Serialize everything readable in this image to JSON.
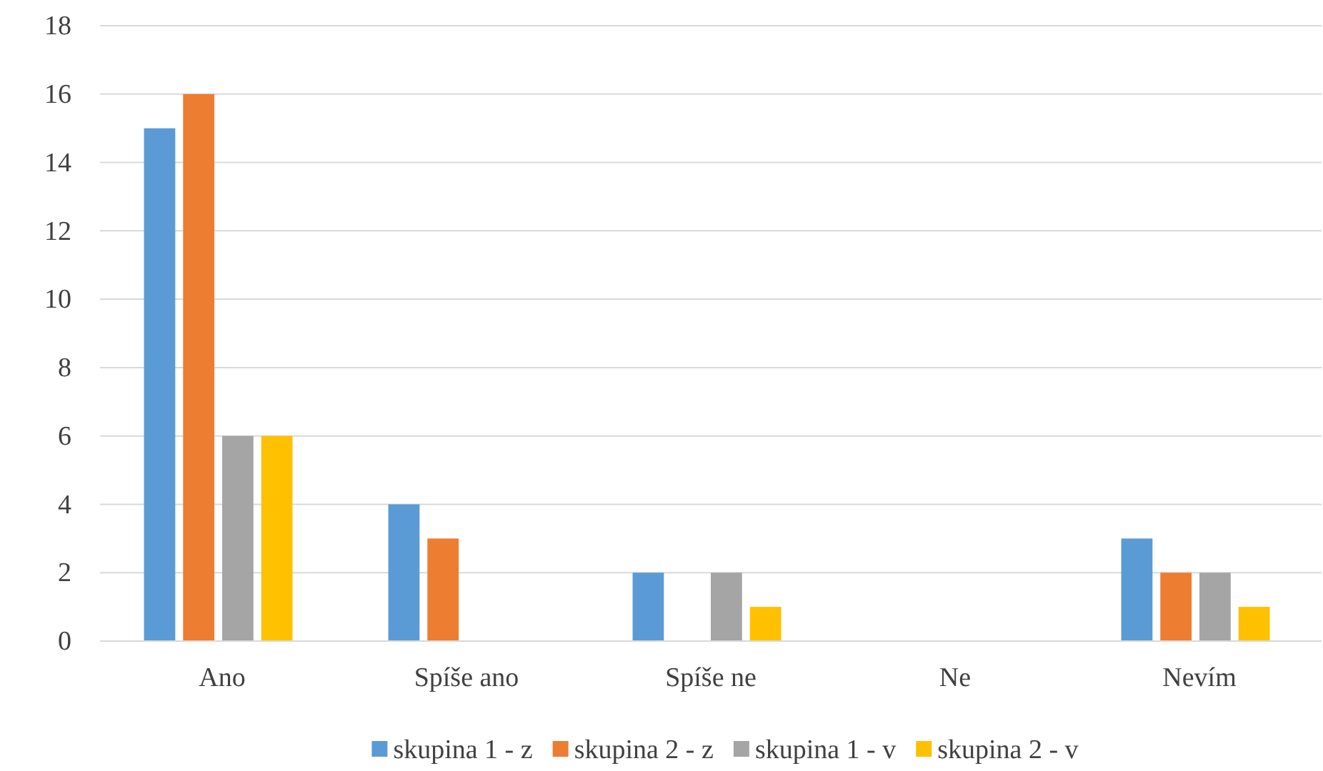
{
  "chart_data": {
    "type": "bar",
    "categories": [
      "Ano",
      "Spíše ano",
      "Spíše ne",
      "Ne",
      "Nevím"
    ],
    "series": [
      {
        "name": "skupina 1 - z",
        "color": "#5b9bd5",
        "values": [
          15,
          4,
          2,
          0,
          3
        ]
      },
      {
        "name": "skupina 2 - z",
        "color": "#ed7d31",
        "values": [
          16,
          3,
          0,
          0,
          2
        ]
      },
      {
        "name": "skupina 1 - v",
        "color": "#a5a5a5",
        "values": [
          6,
          0,
          2,
          0,
          2
        ]
      },
      {
        "name": "skupina 2 - v",
        "color": "#ffc000",
        "values": [
          6,
          0,
          1,
          0,
          1
        ]
      }
    ],
    "ylim": [
      0,
      18
    ],
    "yticks": [
      0,
      2,
      4,
      6,
      8,
      10,
      12,
      14,
      16,
      18
    ],
    "grid": "y",
    "legend": "bottom"
  }
}
